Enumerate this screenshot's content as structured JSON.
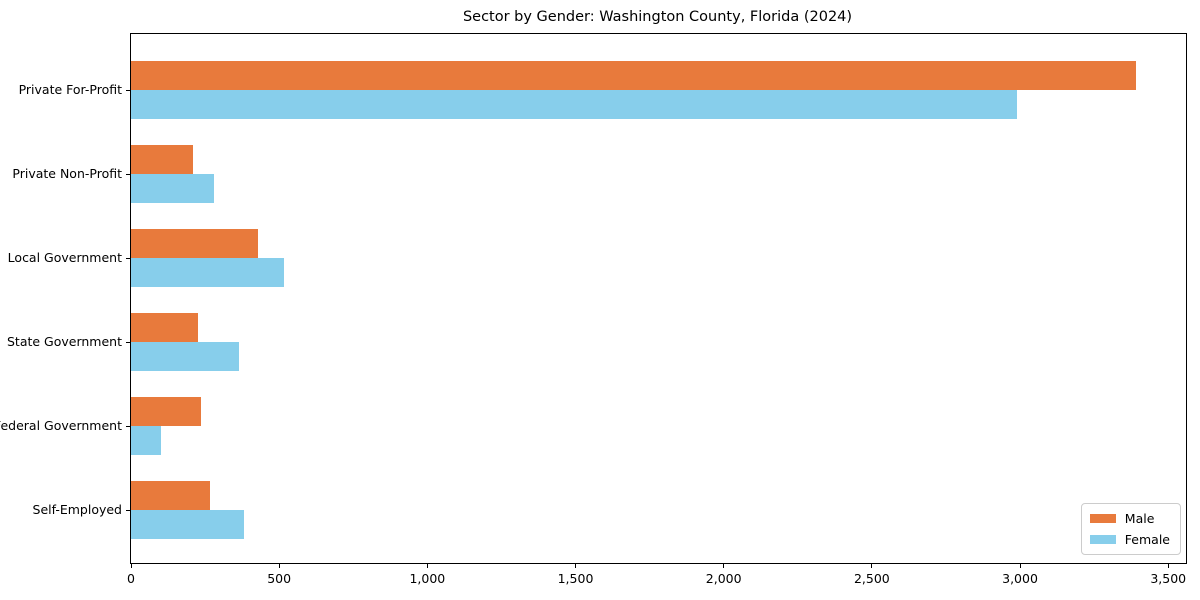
{
  "figure": {
    "background_color": "#ffffff",
    "spine_color": "#000000"
  },
  "chart_data": {
    "type": "bar",
    "orientation": "horizontal",
    "title": "Sector by Gender: Washington County, Florida (2024)",
    "xlabel": "",
    "ylabel": "",
    "grid": false,
    "categories": [
      "Private For-Profit",
      "Private Non-Profit",
      "Local Government",
      "State Government",
      "Federal Government",
      "Self-Employed"
    ],
    "series": [
      {
        "name": "Male",
        "color": "#e87a3c",
        "values": [
          3390,
          210,
          430,
          225,
          235,
          265
        ]
      },
      {
        "name": "Female",
        "color": "#87ceeb",
        "values": [
          2990,
          280,
          515,
          365,
          100,
          380
        ]
      }
    ],
    "xlim": [
      0,
      3560
    ],
    "x_ticks": {
      "values": [
        0,
        500,
        1000,
        1500,
        2000,
        2500,
        3000,
        3500
      ],
      "labels": [
        "0",
        "500",
        "1,000",
        "1,500",
        "2,000",
        "2,500",
        "3,000",
        "3,500"
      ]
    },
    "legend": {
      "position": "lower right",
      "entries": [
        "Male",
        "Female"
      ]
    }
  }
}
